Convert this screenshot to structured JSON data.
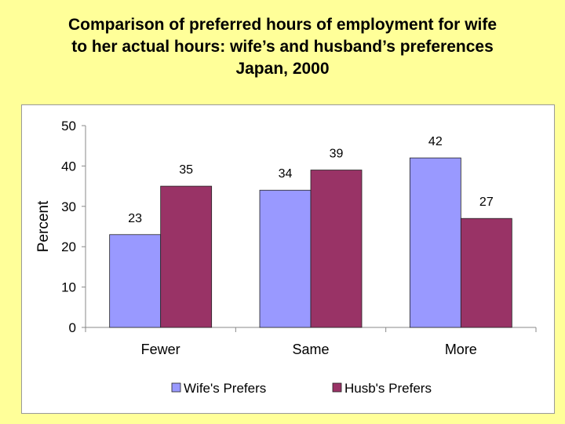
{
  "title": {
    "lines": [
      "Comparison of preferred hours of  employment for wife",
      "to her actual hours: wife’s  and husband’s preferences",
      "Japan, 2000"
    ]
  },
  "colors": {
    "background": "#ffff99",
    "panel": "#ffffff",
    "series_wife": "#9999ff",
    "series_husb": "#993366"
  },
  "chart_data": {
    "type": "bar",
    "categories": [
      "Fewer",
      "Same",
      "More"
    ],
    "series": [
      {
        "name": "Wife's Prefers",
        "values": [
          23,
          34,
          42
        ],
        "color": "#9999ff"
      },
      {
        "name": "Husb's Prefers",
        "values": [
          35,
          39,
          27
        ],
        "color": "#993366"
      }
    ],
    "ylabel": "Percent",
    "xlabel": "",
    "ylim": [
      0,
      50
    ],
    "yticks": [
      0,
      10,
      20,
      30,
      40,
      50
    ],
    "data_labels": true,
    "legend": "bottom",
    "grid": false
  }
}
